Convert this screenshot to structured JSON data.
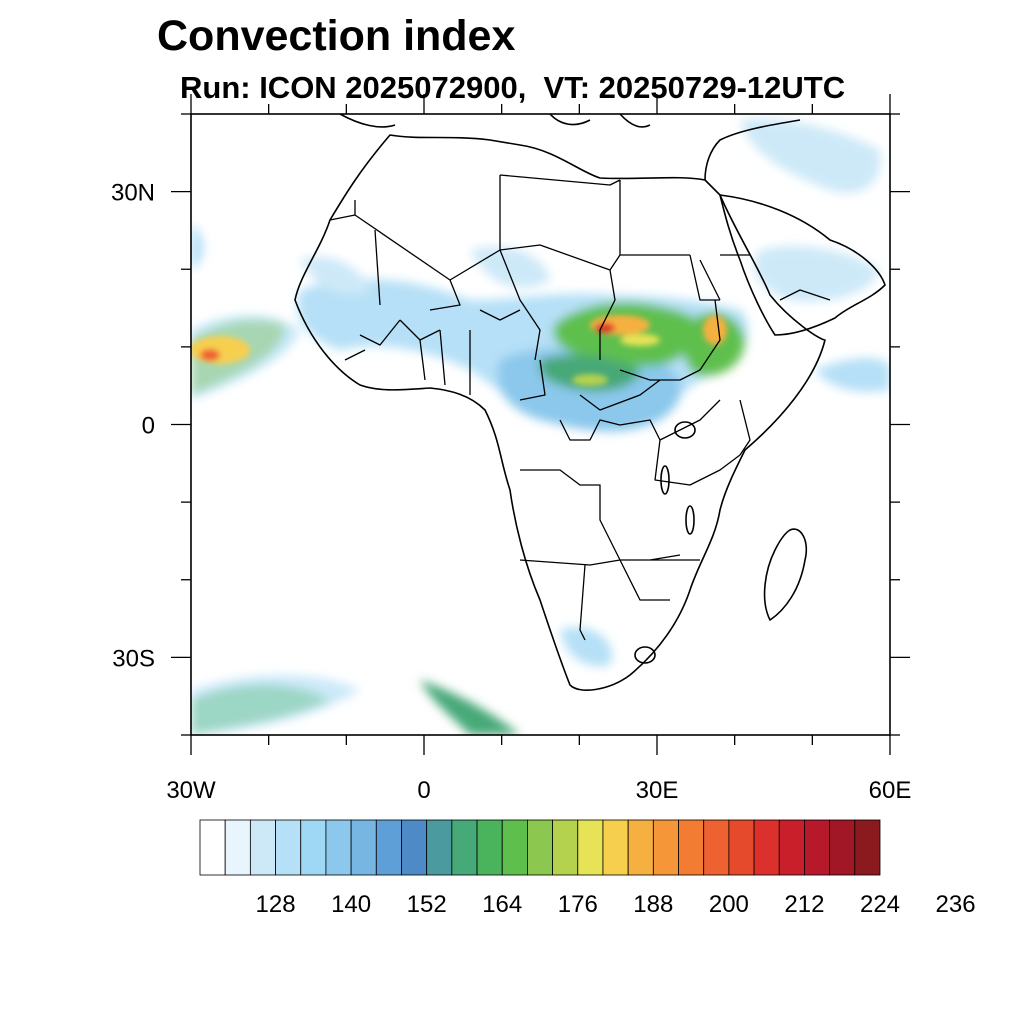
{
  "title": "Convection index",
  "subtitle": "Run: ICON 2025072900,  VT: 20250729-12UTC",
  "map": {
    "projection": "cylindrical equidistant",
    "lon_range": [
      -30,
      60
    ],
    "lat_range": [
      -40,
      40
    ],
    "lat_ticks": [
      {
        "lat": 30,
        "label": "30N"
      },
      {
        "lat": 0,
        "label": "0"
      },
      {
        "lat": -30,
        "label": "30S"
      }
    ],
    "lon_ticks": [
      {
        "lon": -30,
        "label": "30W"
      },
      {
        "lon": 0,
        "label": "0"
      },
      {
        "lon": 30,
        "label": "30E"
      },
      {
        "lon": 60,
        "label": "60E"
      }
    ],
    "field": "convection index",
    "features": [
      "coastlines",
      "country borders"
    ]
  },
  "colorbar": {
    "colors": [
      "#ffffff",
      "#e8f5fc",
      "#cde9f8",
      "#b6e0f7",
      "#9fd8f5",
      "#8bc8ec",
      "#77b6e3",
      "#5e9fd7",
      "#4d8ac6",
      "#4a9aa0",
      "#47a878",
      "#49b45b",
      "#5fbf4d",
      "#8cc84f",
      "#b5d24f",
      "#e6e356",
      "#f7cf4f",
      "#f6b041",
      "#f59739",
      "#f27c32",
      "#ee6130",
      "#e64a2d",
      "#dc302c",
      "#c91f2b",
      "#b5192a",
      "#a11726",
      "#8b1a1e"
    ],
    "labels": [
      "128",
      "140",
      "152",
      "164",
      "176",
      "188",
      "200",
      "212",
      "224",
      "236"
    ]
  }
}
